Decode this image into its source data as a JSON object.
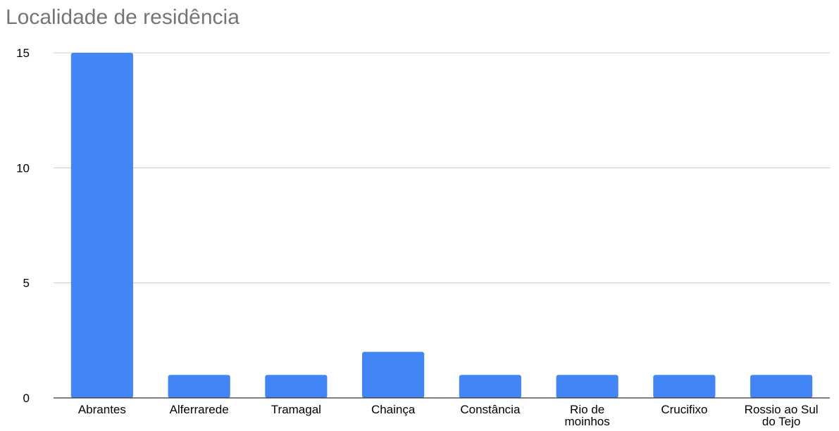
{
  "chart_data": {
    "type": "bar",
    "title": "Localidade de residência",
    "xlabel": "",
    "ylabel": "",
    "categories": [
      "Abrantes",
      "Alferrarede",
      "Tramagal",
      "Chainça",
      "Constância",
      "Rio de moinhos",
      "Crucifixo",
      "Rossio ao Sul do Tejo"
    ],
    "category_label_lines": [
      [
        "Abrantes"
      ],
      [
        "Alferrarede"
      ],
      [
        "Tramagal"
      ],
      [
        "Chainça"
      ],
      [
        "Constância"
      ],
      [
        "Rio de",
        "moinhos"
      ],
      [
        "Crucifixo"
      ],
      [
        "Rossio ao Sul",
        "do Tejo"
      ]
    ],
    "values": [
      15,
      1,
      1,
      2,
      1,
      1,
      1,
      1
    ],
    "ylim": [
      0,
      15
    ],
    "yticks": [
      "0",
      "5",
      "10",
      "15"
    ],
    "grid": true,
    "legend": "none",
    "colors": {
      "bar": "#4285f4",
      "grid": "#cccccc",
      "axis": "#333333",
      "title": "#757575"
    }
  }
}
